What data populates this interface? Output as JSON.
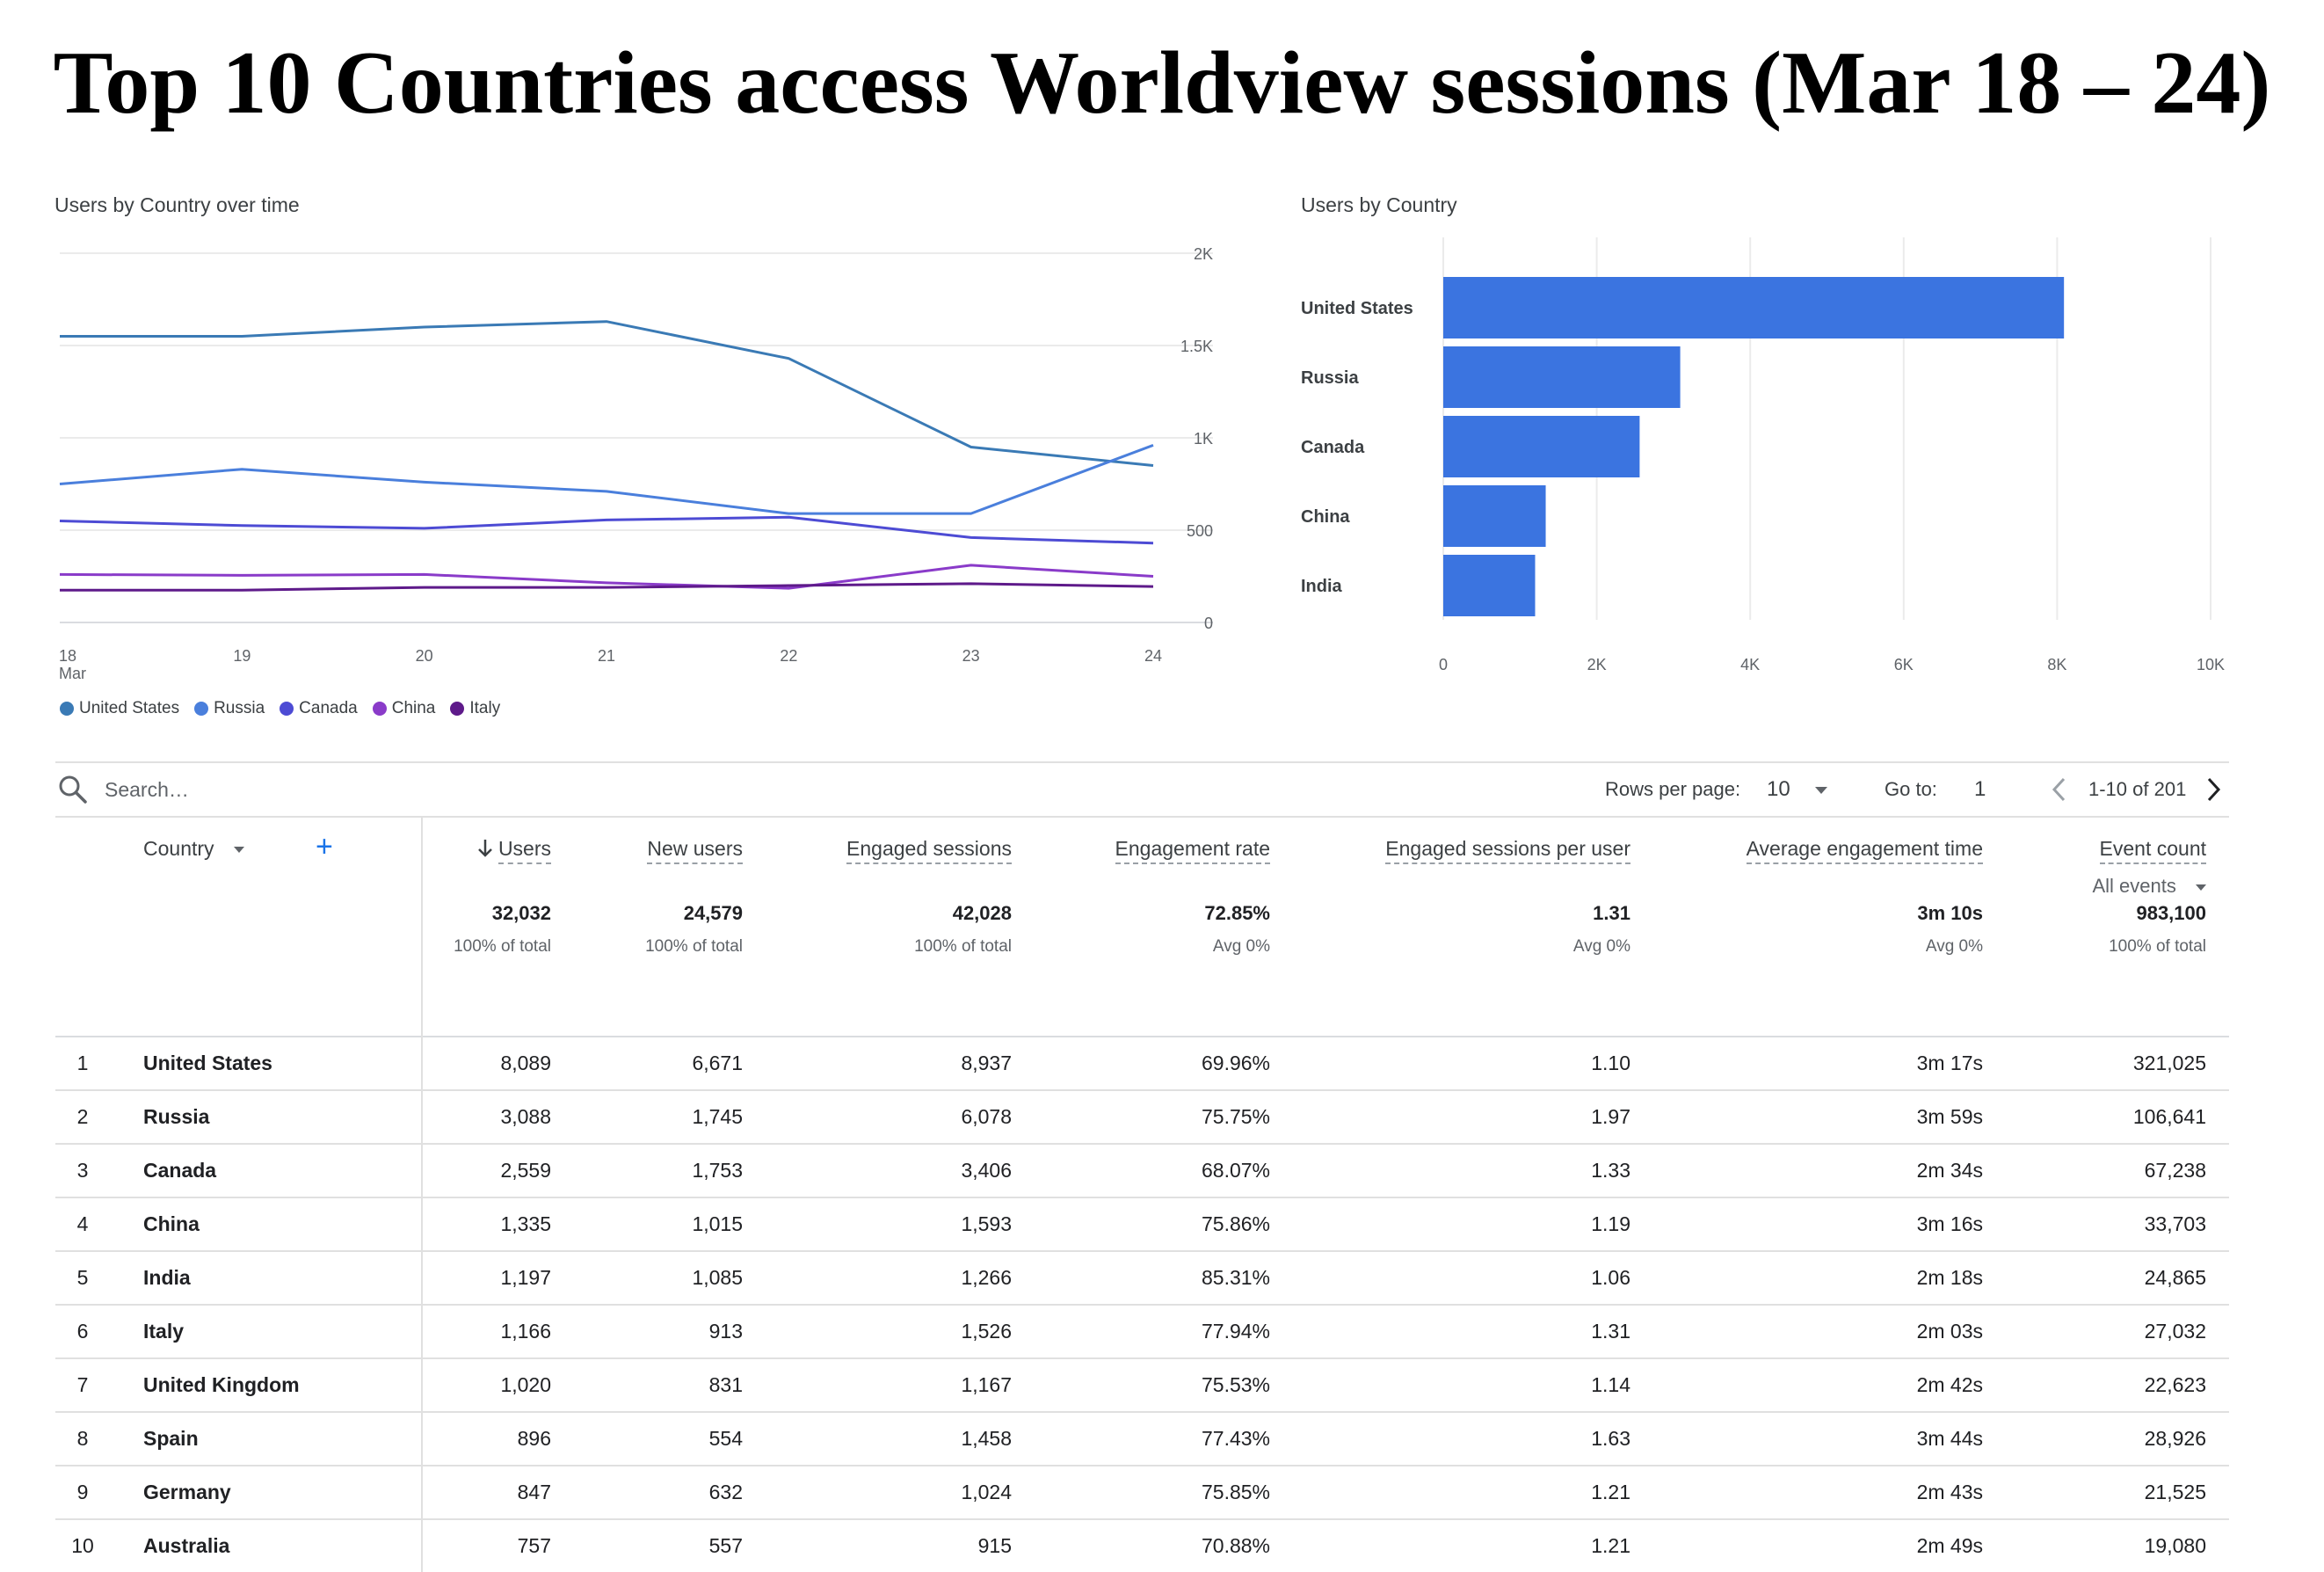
{
  "page": {
    "title": "Top 10 Countries access Worldview sessions (Mar 18 – 24)"
  },
  "line_chart": {
    "title": "Users by Country over time",
    "x_ticks": [
      "18",
      "19",
      "20",
      "21",
      "22",
      "23",
      "24"
    ],
    "x_sub": "Mar",
    "y_ticks": [
      "0",
      "500",
      "1K",
      "1.5K",
      "2K"
    ]
  },
  "bar_chart": {
    "title": "Users by Country",
    "x_ticks": [
      "0",
      "2K",
      "4K",
      "6K",
      "8K",
      "10K"
    ]
  },
  "chart_data": [
    {
      "type": "line",
      "title": "Users by Country over time",
      "x": [
        "18 Mar",
        "19",
        "20",
        "21",
        "22",
        "23",
        "24"
      ],
      "ylim": [
        0,
        2000
      ],
      "y_ticks": [
        0,
        500,
        1000,
        1500,
        2000
      ],
      "y_axis_side": "right",
      "grid": true,
      "legend_position": "bottom-left",
      "series": [
        {
          "name": "United States",
          "color": "#3a7ab5",
          "values": [
            1550,
            1550,
            1600,
            1630,
            1430,
            950,
            850
          ]
        },
        {
          "name": "Russia",
          "color": "#4a7fdc",
          "values": [
            750,
            830,
            760,
            710,
            590,
            590,
            960
          ]
        },
        {
          "name": "Canada",
          "color": "#4d4bd4",
          "values": [
            550,
            525,
            510,
            555,
            570,
            460,
            430
          ]
        },
        {
          "name": "China",
          "color": "#8a3bc9",
          "values": [
            260,
            255,
            260,
            215,
            185,
            310,
            250
          ]
        },
        {
          "name": "Italy",
          "color": "#5e1a8a",
          "values": [
            175,
            175,
            190,
            190,
            200,
            210,
            195
          ]
        }
      ]
    },
    {
      "type": "bar",
      "orientation": "horizontal",
      "title": "Users by Country",
      "categories": [
        "United States",
        "Russia",
        "Canada",
        "China",
        "India"
      ],
      "values": [
        8089,
        3088,
        2559,
        1335,
        1197
      ],
      "xlim": [
        0,
        10000
      ],
      "x_ticks": [
        0,
        2000,
        4000,
        6000,
        8000,
        10000
      ],
      "grid": true,
      "bar_color": "#3b74e0"
    }
  ],
  "toolbar": {
    "search_placeholder": "Search…",
    "rows_label": "Rows per page:",
    "rows_value": "10",
    "goto_label": "Go to:",
    "goto_value": "1",
    "range": "1-10 of 201"
  },
  "table": {
    "country_header": "Country",
    "columns": [
      {
        "label": "Users",
        "total": "32,032",
        "sub": "100% of total"
      },
      {
        "label": "New users",
        "total": "24,579",
        "sub": "100% of total"
      },
      {
        "label": "Engaged sessions",
        "total": "42,028",
        "sub": "100% of total"
      },
      {
        "label": "Engagement rate",
        "total": "72.85%",
        "sub": "Avg 0%"
      },
      {
        "label": "Engaged sessions per user",
        "total": "1.31",
        "sub": "Avg 0%"
      },
      {
        "label": "Average engagement time",
        "total": "3m 10s",
        "sub": "Avg 0%"
      },
      {
        "label": "Event count",
        "total": "983,100",
        "sub": "100% of total"
      }
    ],
    "event_filter": "All events",
    "rows": [
      {
        "rank": "1",
        "country": "United States",
        "cells": [
          "8,089",
          "6,671",
          "8,937",
          "69.96%",
          "1.10",
          "3m 17s",
          "321,025"
        ]
      },
      {
        "rank": "2",
        "country": "Russia",
        "cells": [
          "3,088",
          "1,745",
          "6,078",
          "75.75%",
          "1.97",
          "3m 59s",
          "106,641"
        ]
      },
      {
        "rank": "3",
        "country": "Canada",
        "cells": [
          "2,559",
          "1,753",
          "3,406",
          "68.07%",
          "1.33",
          "2m 34s",
          "67,238"
        ]
      },
      {
        "rank": "4",
        "country": "China",
        "cells": [
          "1,335",
          "1,015",
          "1,593",
          "75.86%",
          "1.19",
          "3m 16s",
          "33,703"
        ]
      },
      {
        "rank": "5",
        "country": "India",
        "cells": [
          "1,197",
          "1,085",
          "1,266",
          "85.31%",
          "1.06",
          "2m 18s",
          "24,865"
        ]
      },
      {
        "rank": "6",
        "country": "Italy",
        "cells": [
          "1,166",
          "913",
          "1,526",
          "77.94%",
          "1.31",
          "2m 03s",
          "27,032"
        ]
      },
      {
        "rank": "7",
        "country": "United Kingdom",
        "cells": [
          "1,020",
          "831",
          "1,167",
          "75.53%",
          "1.14",
          "2m 42s",
          "22,623"
        ]
      },
      {
        "rank": "8",
        "country": "Spain",
        "cells": [
          "896",
          "554",
          "1,458",
          "77.43%",
          "1.63",
          "3m 44s",
          "28,926"
        ]
      },
      {
        "rank": "9",
        "country": "Germany",
        "cells": [
          "847",
          "632",
          "1,024",
          "75.85%",
          "1.21",
          "2m 43s",
          "21,525"
        ]
      },
      {
        "rank": "10",
        "country": "Australia",
        "cells": [
          "757",
          "557",
          "915",
          "70.88%",
          "1.21",
          "2m 49s",
          "19,080"
        ]
      }
    ]
  },
  "icons": {
    "search": "search-icon",
    "sort": "arrow-down-icon",
    "add": "plus-icon",
    "prev": "chevron-left-icon",
    "next": "chevron-right-icon",
    "dropdown": "caret-down-icon"
  }
}
